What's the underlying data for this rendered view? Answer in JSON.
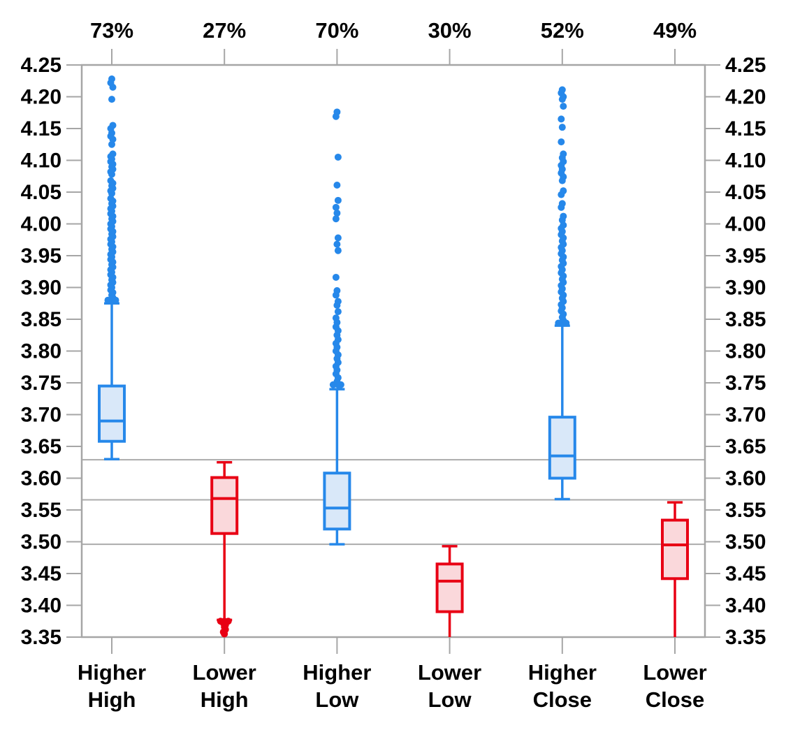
{
  "chart_data": {
    "type": "boxplot",
    "title": "",
    "xlabel": "",
    "ylabel": "",
    "y_axis": {
      "min": 3.35,
      "max": 4.25,
      "step": 0.05,
      "tick_format": "0.00",
      "sides": [
        "left",
        "right"
      ],
      "tick_labels": [
        "3.35",
        "3.40",
        "3.45",
        "3.50",
        "3.55",
        "3.60",
        "3.65",
        "3.70",
        "3.75",
        "3.80",
        "3.85",
        "3.90",
        "3.95",
        "4.00",
        "4.05",
        "4.10",
        "4.15",
        "4.20",
        "4.25"
      ]
    },
    "reference_lines": [
      3.629,
      3.566,
      3.496
    ],
    "grid": "horizontal-reference-only",
    "legend": "none",
    "colors": {
      "blue": "#2688EA",
      "blue_fill": "#D9E8F9",
      "red": "#E80014",
      "red_fill": "#FAD8DB",
      "frame": "#A6A6A6",
      "refline": "#ABABAB",
      "text": "#000000",
      "background": "#FFFFFF"
    },
    "categories": [
      {
        "label": "Higher High",
        "label_lines": [
          "Higher",
          "High"
        ],
        "top_label": "73%",
        "color_key": "blue",
        "box": {
          "whisker_low": 3.63,
          "q1": 3.658,
          "median": 3.69,
          "q3": 3.745,
          "whisker_high": 3.875,
          "cap_low": true,
          "cap_high": true
        },
        "outliers": [
          4.228,
          4.222,
          4.215,
          4.196,
          4.155,
          4.15,
          4.143,
          4.138,
          4.133,
          4.125,
          4.11,
          4.106,
          4.102,
          4.098,
          4.094,
          4.09,
          4.086,
          4.082,
          4.078,
          4.068,
          4.064,
          4.06,
          4.056,
          4.052,
          4.048,
          4.04,
          4.036,
          4.032,
          4.028,
          4.024,
          4.02,
          4.016,
          4.012,
          4.008,
          4.004,
          4.0,
          3.996,
          3.992,
          3.988,
          3.984,
          3.98,
          3.976,
          3.972,
          3.968,
          3.964,
          3.96,
          3.956,
          3.952,
          3.948,
          3.944,
          3.94,
          3.936,
          3.932,
          3.928,
          3.924,
          3.92,
          3.916,
          3.912,
          3.908,
          3.904,
          3.9,
          3.896,
          3.892,
          3.888,
          3.884,
          3.88
        ]
      },
      {
        "label": "Lower High",
        "label_lines": [
          "Lower",
          "High"
        ],
        "top_label": "27%",
        "color_key": "red",
        "box": {
          "whisker_low": 3.377,
          "q1": 3.513,
          "median": 3.568,
          "q3": 3.601,
          "whisker_high": 3.625,
          "cap_low": true,
          "cap_high": true
        },
        "outliers": [
          3.375,
          3.372,
          3.369,
          3.366,
          3.362,
          3.358,
          3.355
        ]
      },
      {
        "label": "Higher Low",
        "label_lines": [
          "Higher",
          "Low"
        ],
        "top_label": "70%",
        "color_key": "blue",
        "box": {
          "whisker_low": 3.496,
          "q1": 3.52,
          "median": 3.553,
          "q3": 3.608,
          "whisker_high": 3.74,
          "cap_low": true,
          "cap_high": true
        },
        "outliers": [
          4.176,
          4.169,
          4.105,
          4.061,
          4.037,
          4.026,
          4.017,
          4.008,
          3.978,
          3.968,
          3.958,
          3.916,
          3.895,
          3.888,
          3.878,
          3.872,
          3.862,
          3.852,
          3.845,
          3.838,
          3.832,
          3.825,
          3.818,
          3.812,
          3.806,
          3.8,
          3.794,
          3.788,
          3.782,
          3.776,
          3.77,
          3.764,
          3.758,
          3.752,
          3.747
        ]
      },
      {
        "label": "Lower Low",
        "label_lines": [
          "Lower",
          "Low"
        ],
        "top_label": "30%",
        "color_key": "red",
        "box": {
          "whisker_low": 3.35,
          "q1": 3.39,
          "median": 3.438,
          "q3": 3.465,
          "whisker_high": 3.493,
          "cap_low": false,
          "cap_high": true
        },
        "outliers": []
      },
      {
        "label": "Higher Close",
        "label_lines": [
          "Higher",
          "Close"
        ],
        "top_label": "52%",
        "color_key": "blue",
        "box": {
          "whisker_low": 3.567,
          "q1": 3.6,
          "median": 3.635,
          "q3": 3.696,
          "whisker_high": 3.84,
          "cap_low": true,
          "cap_high": true
        },
        "outliers": [
          4.211,
          4.206,
          4.2,
          4.196,
          4.185,
          4.165,
          4.152,
          4.129,
          4.11,
          4.104,
          4.098,
          4.092,
          4.086,
          4.08,
          4.074,
          4.068,
          4.052,
          4.046,
          4.032,
          4.026,
          4.012,
          4.006,
          3.998,
          3.993,
          3.988,
          3.983,
          3.978,
          3.973,
          3.968,
          3.963,
          3.958,
          3.953,
          3.948,
          3.943,
          3.938,
          3.933,
          3.928,
          3.923,
          3.918,
          3.913,
          3.908,
          3.903,
          3.898,
          3.893,
          3.888,
          3.883,
          3.878,
          3.873,
          3.868,
          3.863,
          3.858,
          3.853,
          3.848,
          3.844
        ]
      },
      {
        "label": "Lower Close",
        "label_lines": [
          "Lower",
          "Close"
        ],
        "top_label": "49%",
        "color_key": "red",
        "box": {
          "whisker_low": 3.35,
          "q1": 3.442,
          "median": 3.495,
          "q3": 3.534,
          "whisker_high": 3.562,
          "cap_low": false,
          "cap_high": true
        },
        "outliers": []
      }
    ]
  }
}
